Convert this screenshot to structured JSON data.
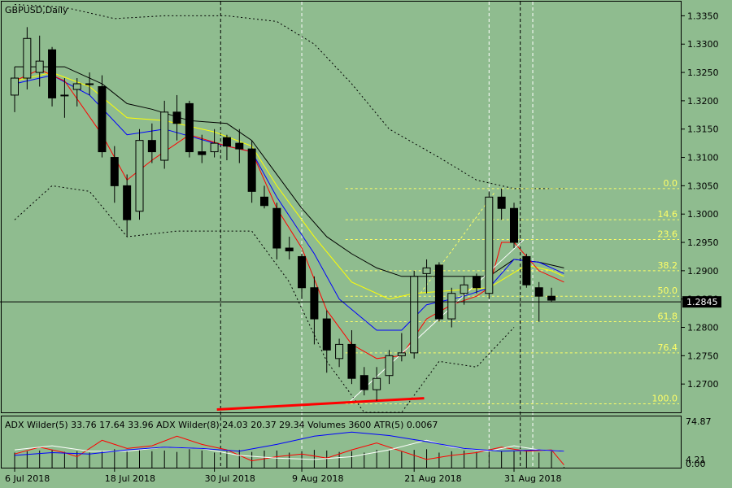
{
  "window": {
    "title": "GBPUSD,Daily"
  },
  "colors": {
    "background": "#8fbc8f",
    "bull": "#8fbc8f",
    "bear": "#000000",
    "ema_fast": "#ff0000",
    "ema_mid": "#0000ff",
    "ema_slow": "#ffff00",
    "sma": "#000000",
    "fibo": "#ffff66",
    "trend": "#ffffff",
    "support": "#ff0000",
    "adx_main": "#0000ff",
    "adx_plus": "#ffffff",
    "adx_minus": "#ff0000"
  },
  "chart_data": {
    "type": "candlestick",
    "symbol": "GBPUSD",
    "timeframe": "Daily",
    "ylim": [
      1.265,
      1.3375
    ],
    "price_ticks": [
      "1.3350",
      "1.3300",
      "1.3250",
      "1.3200",
      "1.3150",
      "1.3100",
      "1.3050",
      "1.3000",
      "1.2950",
      "1.2900",
      "1.2850",
      "1.2800",
      "1.2750",
      "1.2700"
    ],
    "current_price": "1.2845",
    "x_ticks": [
      "6 Jul 2018",
      "18 Jul 2018",
      "30 Jul 2018",
      "9 Aug 2018",
      "21 Aug 2018",
      "31 Aug 2018"
    ],
    "candles": [
      {
        "o": 1.321,
        "h": 1.326,
        "l": 1.318,
        "c": 1.324
      },
      {
        "o": 1.324,
        "h": 1.333,
        "l": 1.322,
        "c": 1.331
      },
      {
        "o": 1.325,
        "h": 1.3315,
        "l": 1.3225,
        "c": 1.327
      },
      {
        "o": 1.329,
        "h": 1.3295,
        "l": 1.319,
        "c": 1.3205
      },
      {
        "o": 1.321,
        "h": 1.324,
        "l": 1.317,
        "c": 1.321
      },
      {
        "o": 1.322,
        "h": 1.324,
        "l": 1.319,
        "c": 1.323
      },
      {
        "o": 1.323,
        "h": 1.325,
        "l": 1.321,
        "c": 1.323
      },
      {
        "o": 1.3225,
        "h": 1.3245,
        "l": 1.31,
        "c": 1.311
      },
      {
        "o": 1.31,
        "h": 1.312,
        "l": 1.302,
        "c": 1.305
      },
      {
        "o": 1.305,
        "h": 1.307,
        "l": 1.296,
        "c": 1.299
      },
      {
        "o": 1.3005,
        "h": 1.315,
        "l": 1.299,
        "c": 1.313
      },
      {
        "o": 1.313,
        "h": 1.316,
        "l": 1.309,
        "c": 1.311
      },
      {
        "o": 1.3095,
        "h": 1.32,
        "l": 1.308,
        "c": 1.318
      },
      {
        "o": 1.318,
        "h": 1.321,
        "l": 1.313,
        "c": 1.316
      },
      {
        "o": 1.3195,
        "h": 1.32,
        "l": 1.31,
        "c": 1.311
      },
      {
        "o": 1.311,
        "h": 1.314,
        "l": 1.309,
        "c": 1.3105
      },
      {
        "o": 1.311,
        "h": 1.315,
        "l": 1.31,
        "c": 1.3125
      },
      {
        "o": 1.3135,
        "h": 1.314,
        "l": 1.3095,
        "c": 1.312
      },
      {
        "o": 1.3125,
        "h": 1.315,
        "l": 1.309,
        "c": 1.3115
      },
      {
        "o": 1.3115,
        "h": 1.313,
        "l": 1.302,
        "c": 1.304
      },
      {
        "o": 1.303,
        "h": 1.305,
        "l": 1.301,
        "c": 1.3015
      },
      {
        "o": 1.301,
        "h": 1.302,
        "l": 1.292,
        "c": 1.294
      },
      {
        "o": 1.294,
        "h": 1.296,
        "l": 1.292,
        "c": 1.2935
      },
      {
        "o": 1.2925,
        "h": 1.293,
        "l": 1.285,
        "c": 1.287
      },
      {
        "o": 1.287,
        "h": 1.289,
        "l": 1.277,
        "c": 1.2815
      },
      {
        "o": 1.2815,
        "h": 1.283,
        "l": 1.272,
        "c": 1.276
      },
      {
        "o": 1.2745,
        "h": 1.278,
        "l": 1.273,
        "c": 1.277
      },
      {
        "o": 1.277,
        "h": 1.2795,
        "l": 1.27,
        "c": 1.271
      },
      {
        "o": 1.2715,
        "h": 1.273,
        "l": 1.268,
        "c": 1.269
      },
      {
        "o": 1.269,
        "h": 1.273,
        "l": 1.267,
        "c": 1.271
      },
      {
        "o": 1.2715,
        "h": 1.276,
        "l": 1.27,
        "c": 1.275
      },
      {
        "o": 1.275,
        "h": 1.279,
        "l": 1.274,
        "c": 1.2755
      },
      {
        "o": 1.2755,
        "h": 1.29,
        "l": 1.2745,
        "c": 1.289
      },
      {
        "o": 1.2895,
        "h": 1.292,
        "l": 1.286,
        "c": 1.2905
      },
      {
        "o": 1.291,
        "h": 1.2915,
        "l": 1.281,
        "c": 1.2815
      },
      {
        "o": 1.2815,
        "h": 1.287,
        "l": 1.28,
        "c": 1.286
      },
      {
        "o": 1.286,
        "h": 1.289,
        "l": 1.284,
        "c": 1.2875
      },
      {
        "o": 1.289,
        "h": 1.2895,
        "l": 1.286,
        "c": 1.287
      },
      {
        "o": 1.286,
        "h": 1.304,
        "l": 1.285,
        "c": 1.303
      },
      {
        "o": 1.303,
        "h": 1.3045,
        "l": 1.299,
        "c": 1.301
      },
      {
        "o": 1.301,
        "h": 1.302,
        "l": 1.294,
        "c": 1.295
      },
      {
        "o": 1.2925,
        "h": 1.293,
        "l": 1.287,
        "c": 1.2875
      },
      {
        "o": 1.287,
        "h": 1.288,
        "l": 1.281,
        "c": 1.2855
      },
      {
        "o": 1.2855,
        "h": 1.287,
        "l": 1.2845,
        "c": 1.2848
      }
    ],
    "bollinger": {
      "upper": [
        [
          0,
          1.337
        ],
        [
          4,
          1.3365
        ],
        [
          8,
          1.3345
        ],
        [
          12,
          1.335
        ],
        [
          17,
          1.335
        ],
        [
          21,
          1.334
        ],
        [
          24,
          1.33
        ],
        [
          27,
          1.323
        ],
        [
          30,
          1.315
        ],
        [
          34,
          1.31
        ],
        [
          37,
          1.306
        ],
        [
          40,
          1.3045
        ],
        [
          44,
          1.3045
        ]
      ],
      "lower": [
        [
          0,
          1.299
        ],
        [
          3,
          1.305
        ],
        [
          6,
          1.304
        ],
        [
          9,
          1.296
        ],
        [
          13,
          1.297
        ],
        [
          19,
          1.297
        ],
        [
          22,
          1.288
        ],
        [
          25,
          1.274
        ],
        [
          28,
          1.265
        ],
        [
          31,
          1.265
        ],
        [
          34,
          1.274
        ],
        [
          37,
          1.273
        ],
        [
          40,
          1.28
        ]
      ]
    },
    "sma": [
      [
        0,
        1.326
      ],
      [
        4,
        1.326
      ],
      [
        7,
        1.323
      ],
      [
        9,
        1.3195
      ],
      [
        11,
        1.3185
      ],
      [
        14,
        1.3165
      ],
      [
        17,
        1.316
      ],
      [
        19,
        1.313
      ],
      [
        21,
        1.307
      ],
      [
        23,
        1.301
      ],
      [
        25,
        1.296
      ],
      [
        27,
        1.293
      ],
      [
        29,
        1.2905
      ],
      [
        31,
        1.289
      ],
      [
        33,
        1.289
      ],
      [
        36,
        1.289
      ],
      [
        38,
        1.289
      ],
      [
        40,
        1.292
      ],
      [
        42,
        1.2915
      ],
      [
        44,
        1.2905
      ]
    ],
    "ema_slow": [
      [
        0,
        1.3235
      ],
      [
        3,
        1.325
      ],
      [
        6,
        1.3225
      ],
      [
        9,
        1.317
      ],
      [
        12,
        1.3165
      ],
      [
        16,
        1.3145
      ],
      [
        19,
        1.312
      ],
      [
        21,
        1.305
      ],
      [
        24,
        1.296
      ],
      [
        27,
        1.288
      ],
      [
        30,
        1.285
      ],
      [
        32,
        1.286
      ],
      [
        35,
        1.2865
      ],
      [
        38,
        1.287
      ],
      [
        41,
        1.291
      ],
      [
        43,
        1.29
      ],
      [
        44,
        1.289
      ]
    ],
    "ema_mid": [
      [
        0,
        1.323
      ],
      [
        3,
        1.3245
      ],
      [
        6,
        1.321
      ],
      [
        9,
        1.314
      ],
      [
        12,
        1.315
      ],
      [
        16,
        1.3125
      ],
      [
        19,
        1.311
      ],
      [
        21,
        1.303
      ],
      [
        24,
        1.293
      ],
      [
        26,
        1.285
      ],
      [
        29,
        1.2795
      ],
      [
        31,
        1.2795
      ],
      [
        33,
        1.284
      ],
      [
        36,
        1.2855
      ],
      [
        38,
        1.287
      ],
      [
        40,
        1.292
      ],
      [
        42,
        1.2915
      ],
      [
        44,
        1.2895
      ]
    ],
    "ema_fast": [
      [
        0,
        1.3235
      ],
      [
        2,
        1.3255
      ],
      [
        4,
        1.3235
      ],
      [
        7,
        1.314
      ],
      [
        9,
        1.306
      ],
      [
        11,
        1.3095
      ],
      [
        14,
        1.314
      ],
      [
        17,
        1.312
      ],
      [
        19,
        1.311
      ],
      [
        21,
        1.301
      ],
      [
        23,
        1.294
      ],
      [
        25,
        1.283
      ],
      [
        27,
        1.277
      ],
      [
        29,
        1.2745
      ],
      [
        31,
        1.275
      ],
      [
        33,
        1.2815
      ],
      [
        35,
        1.284
      ],
      [
        37,
        1.2855
      ],
      [
        38,
        1.287
      ],
      [
        39,
        1.295
      ],
      [
        40,
        1.295
      ],
      [
        42,
        1.29
      ],
      [
        44,
        1.288
      ]
    ],
    "fibonacci": {
      "high": 1.3045,
      "low": 1.2665,
      "start_bar": 26.5,
      "levels": [
        {
          "label": "0.0",
          "value": 1.3045
        },
        {
          "label": "14.6",
          "value": 1.299
        },
        {
          "label": "23.6",
          "value": 1.2955
        },
        {
          "label": "38.2",
          "value": 1.29
        },
        {
          "label": "50.0",
          "value": 1.2855
        },
        {
          "label": "61.8",
          "value": 1.281
        },
        {
          "label": "76.4",
          "value": 1.2755
        },
        {
          "label": "100.0",
          "value": 1.2665
        }
      ]
    },
    "trendline": [
      [
        26.8,
        1.2668
      ],
      [
        40.8,
        1.2955
      ]
    ],
    "support_line": [
      [
        16.2,
        1.2655
      ],
      [
        32.8,
        1.2675
      ]
    ],
    "fibo_fan_line": [
      [
        32.5,
        1.286
      ],
      [
        38.5,
        1.304
      ]
    ],
    "vlines": [
      {
        "bar": 16.5,
        "style": "dashed",
        "color": "#000000"
      },
      {
        "bar": 23,
        "style": "dashed",
        "color": "#ffffff"
      },
      {
        "bar": 38,
        "style": "dashed",
        "color": "#ffffff"
      },
      {
        "bar": 40.5,
        "style": "dashed",
        "color": "#000000"
      },
      {
        "bar": 41.5,
        "style": "dashed",
        "color": "#ffffff"
      }
    ]
  },
  "indicator": {
    "label": "ADX Wilder(5) 33.76 17.64 33.96 ADX Wilder(8) 24.03 20.37 29.34 Volumes 3600 ATR(5) 0.0067",
    "scale_top": "74.87",
    "scale_mid": "4.21",
    "scale_bottom": "0.00",
    "ylim": [
      0,
      74.87
    ],
    "adx_main": [
      [
        0,
        18
      ],
      [
        3,
        22
      ],
      [
        6,
        20
      ],
      [
        9,
        26
      ],
      [
        12,
        30
      ],
      [
        15,
        28
      ],
      [
        18,
        24
      ],
      [
        21,
        34
      ],
      [
        24,
        46
      ],
      [
        27,
        52
      ],
      [
        30,
        47
      ],
      [
        33,
        38
      ],
      [
        36,
        28
      ],
      [
        39,
        24
      ],
      [
        42,
        26
      ],
      [
        44,
        24
      ]
    ],
    "adx_plus": [
      [
        0,
        26
      ],
      [
        3,
        32
      ],
      [
        6,
        24
      ],
      [
        9,
        24
      ],
      [
        12,
        30
      ],
      [
        15,
        28
      ],
      [
        18,
        18
      ],
      [
        21,
        14
      ],
      [
        24,
        12
      ],
      [
        27,
        16
      ],
      [
        30,
        26
      ],
      [
        33,
        40
      ],
      [
        35,
        30
      ],
      [
        38,
        24
      ],
      [
        40,
        32
      ],
      [
        42,
        26
      ],
      [
        44,
        24
      ]
    ],
    "adx_minus": [
      [
        0,
        20
      ],
      [
        2,
        30
      ],
      [
        4,
        22
      ],
      [
        5,
        16
      ],
      [
        7,
        40
      ],
      [
        9,
        28
      ],
      [
        11,
        32
      ],
      [
        13,
        46
      ],
      [
        15,
        34
      ],
      [
        17,
        26
      ],
      [
        19,
        10
      ],
      [
        21,
        16
      ],
      [
        23,
        20
      ],
      [
        25,
        14
      ],
      [
        27,
        26
      ],
      [
        29,
        36
      ],
      [
        31,
        24
      ],
      [
        33,
        12
      ],
      [
        35,
        18
      ],
      [
        37,
        22
      ],
      [
        39,
        30
      ],
      [
        41,
        24
      ],
      [
        43,
        26
      ],
      [
        44,
        4
      ]
    ],
    "volumes": [
      22,
      24,
      25,
      26,
      23,
      24,
      22,
      25,
      27,
      24,
      26,
      24,
      25,
      23,
      27,
      25,
      22,
      24,
      26,
      23,
      25,
      25,
      22,
      24,
      26,
      25,
      23,
      24,
      22,
      26,
      25,
      24,
      26,
      27,
      22,
      24,
      25,
      23,
      26,
      24,
      24,
      25,
      22,
      24,
      1
    ]
  }
}
